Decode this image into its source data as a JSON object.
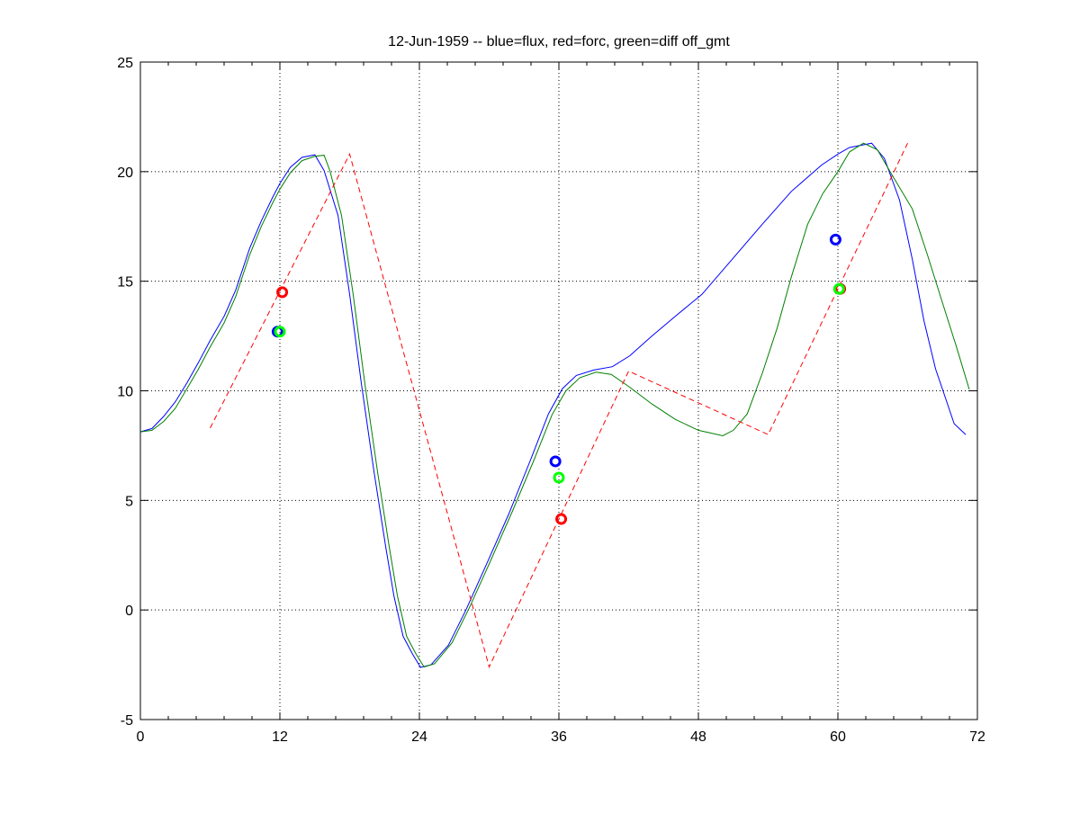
{
  "chart_data": {
    "type": "line",
    "title": "12-Jun-1959 -- blue=flux, red=forc, green=diff off_gmt",
    "xlabel": "",
    "ylabel": "",
    "xlim": [
      0,
      72
    ],
    "ylim": [
      -5,
      25
    ],
    "xticks": [
      0,
      12,
      24,
      36,
      48,
      60,
      72
    ],
    "yticks": [
      -5,
      0,
      5,
      10,
      15,
      20,
      25
    ],
    "x_minor_step": 2.4,
    "grid": true,
    "legend": "none",
    "series": [
      {
        "name": "flux",
        "color": "#0000ff",
        "style": "solid",
        "x": [
          0,
          1,
          2,
          3,
          4,
          5,
          6,
          7.2,
          8.2,
          9.4,
          10.4,
          11.4,
          12,
          12.9,
          13.9,
          15,
          15.8,
          17,
          18,
          19,
          20.1,
          21.1,
          21.8,
          22.6,
          23.4,
          24.1,
          25,
          26.5,
          28,
          29.7,
          31.7,
          33.6,
          35.1,
          36.3,
          37.5,
          39,
          40.6,
          42.1,
          44,
          46,
          48.3,
          50.9,
          53.5,
          56,
          58.6,
          60,
          61,
          62.9,
          64,
          65.3,
          66.4,
          67.4,
          68.4,
          69,
          70,
          71
        ],
        "y": [
          8.13,
          8.28,
          8.83,
          9.5,
          10.36,
          11.3,
          12.3,
          13.4,
          14.6,
          16.5,
          17.75,
          18.86,
          19.46,
          20.2,
          20.65,
          20.77,
          20.05,
          18,
          14.4,
          10.36,
          6.3,
          2.9,
          0.66,
          -1.2,
          -2.0,
          -2.62,
          -2.5,
          -1.6,
          0.0,
          2.0,
          4.4,
          6.9,
          8.95,
          10.1,
          10.7,
          10.95,
          11.1,
          11.6,
          12.5,
          13.4,
          14.4,
          16.0,
          17.6,
          19.1,
          20.3,
          20.8,
          21.1,
          21.3,
          20.6,
          18.7,
          16.0,
          13.2,
          11.0,
          10.06,
          8.5,
          8.0
        ]
      },
      {
        "name": "diff off_gmt",
        "color": "#008000",
        "style": "solid",
        "x": [
          0,
          1,
          2,
          3,
          4,
          5,
          6,
          7.2,
          8.2,
          9.4,
          10.4,
          11.4,
          12,
          12.9,
          13.9,
          15,
          15.8,
          16.3,
          17.3,
          18.3,
          19.3,
          20.4,
          21.4,
          22.1,
          22.9,
          23.7,
          24.4,
          25.3,
          26.8,
          28.3,
          30,
          32,
          33.9,
          35.4,
          36.6,
          37.8,
          39.2,
          40.5,
          42,
          44,
          46,
          48,
          50.1,
          51,
          52.2,
          53.5,
          54.8,
          56,
          57.4,
          58.7,
          60,
          61,
          62.2,
          63.4,
          64.6,
          66.4,
          67.7,
          69,
          70.2,
          71.3
        ],
        "y": [
          8.13,
          8.2,
          8.6,
          9.2,
          10.1,
          11.0,
          12.0,
          13.1,
          14.3,
          16.2,
          17.5,
          18.6,
          19.2,
          19.95,
          20.5,
          20.7,
          20.75,
          20.05,
          18,
          14.4,
          10.36,
          6.3,
          2.9,
          0.66,
          -1.2,
          -2.0,
          -2.6,
          -2.45,
          -1.5,
          0.1,
          2.1,
          4.5,
          6.9,
          8.9,
          10.0,
          10.6,
          10.85,
          10.75,
          10.2,
          9.4,
          8.7,
          8.2,
          7.95,
          8.2,
          8.95,
          10.8,
          12.9,
          15.2,
          17.6,
          19.0,
          20.0,
          20.9,
          21.3,
          21.0,
          19.9,
          18.3,
          16.2,
          14.0,
          12.0,
          10.06
        ]
      },
      {
        "name": "forc",
        "color": "#ff0000",
        "style": "dashed",
        "x": [
          6,
          18,
          30,
          42,
          54,
          66
        ],
        "y": [
          8.3,
          20.8,
          -2.6,
          10.9,
          8.0,
          21.3
        ]
      }
    ],
    "markers": [
      {
        "name": "flux",
        "color": "#0000ff",
        "x": [
          11.8,
          35.7,
          59.8
        ],
        "y": [
          12.7,
          6.78,
          16.9
        ]
      },
      {
        "name": "forc",
        "color": "#ff0000",
        "x": [
          12.2,
          36.2,
          60.2
        ],
        "y": [
          14.5,
          4.15,
          14.65
        ]
      },
      {
        "name": "diff off_gmt",
        "color": "#00ff00",
        "x": [
          12.0,
          36.0,
          60.1
        ],
        "y": [
          12.7,
          6.04,
          14.65
        ]
      }
    ]
  }
}
